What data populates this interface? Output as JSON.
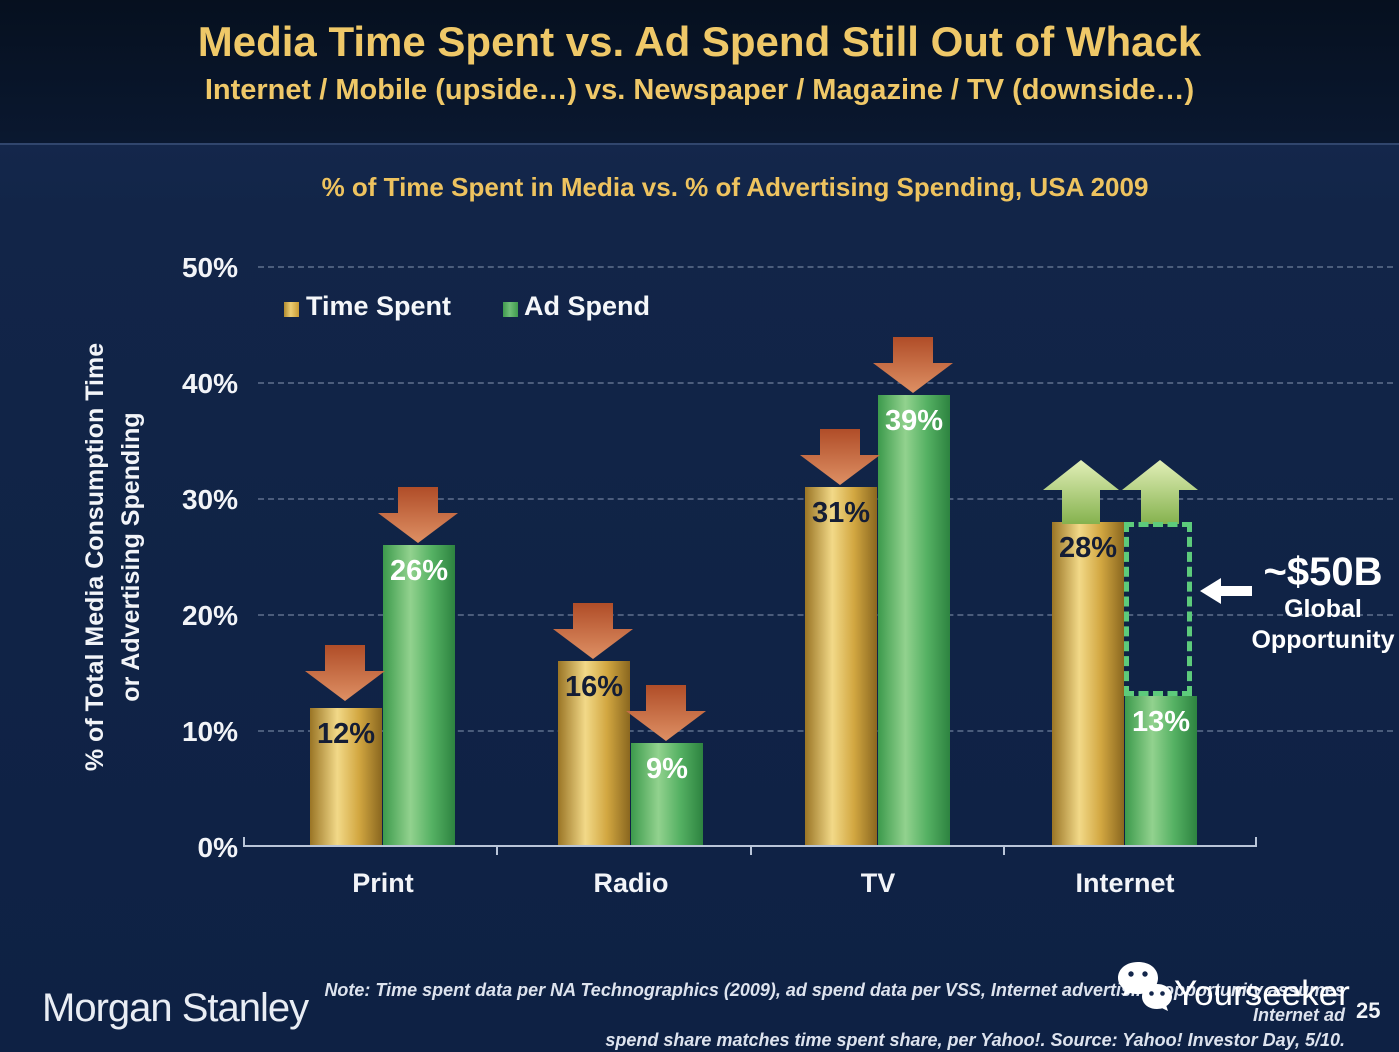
{
  "slide": {
    "title": "Media Time Spent vs. Ad Spend Still Out of Whack",
    "subtitle": "Internet / Mobile (upside…) vs. Newspaper / Magazine / TV (downside…)"
  },
  "chart_data": {
    "type": "bar",
    "title": "% of Time Spent in Media vs. % of Advertising Spending, USA 2009",
    "ylabel_line1": "% of Total Media Consumption Time",
    "ylabel_line2": "or Advertising Spending",
    "categories": [
      "Print",
      "Radio",
      "TV",
      "Internet"
    ],
    "series": [
      {
        "name": "Time Spent",
        "color": "#D9A740",
        "values": [
          12,
          16,
          31,
          28
        ],
        "labels": [
          "12%",
          "16%",
          "31%",
          "28%"
        ]
      },
      {
        "name": "Ad Spend",
        "color": "#4CAE5E",
        "values": [
          26,
          9,
          39,
          13
        ],
        "labels": [
          "26%",
          "9%",
          "39%",
          "13%"
        ]
      }
    ],
    "ylim": [
      0,
      50
    ],
    "yticks": [
      "0%",
      "10%",
      "20%",
      "30%",
      "40%",
      "50%"
    ],
    "grid": "horizontal dashed",
    "legend_position": "top-left inside plot",
    "annotations": {
      "opportunity_value": "~$50B",
      "opportunity_label_line1": "Global",
      "opportunity_label_line2": "Opportunity",
      "down_arrows_on": [
        "Print Time Spent",
        "Print Ad Spend",
        "Radio Time Spent",
        "Radio Ad Spend",
        "TV Time Spent",
        "TV Ad Spend"
      ],
      "up_arrows_on": [
        "Internet Time Spent",
        "Internet Ad Spend"
      ],
      "down_arrow_color": "#c2592f",
      "up_arrow_color": "#a8c86e",
      "opportunity_box_color": "#5dcb7b"
    }
  },
  "footer": {
    "brand": "Morgan Stanley",
    "note_line1": "Note: Time spent data per NA Technographics (2009), ad spend data per VSS, Internet advertising opportunity assumes Internet ad",
    "note_line2": "spend share matches time spent share, per Yahoo!. Source: Yahoo! Investor Day, 5/10.",
    "watermark": "Yourseeker",
    "page_number": "25"
  }
}
